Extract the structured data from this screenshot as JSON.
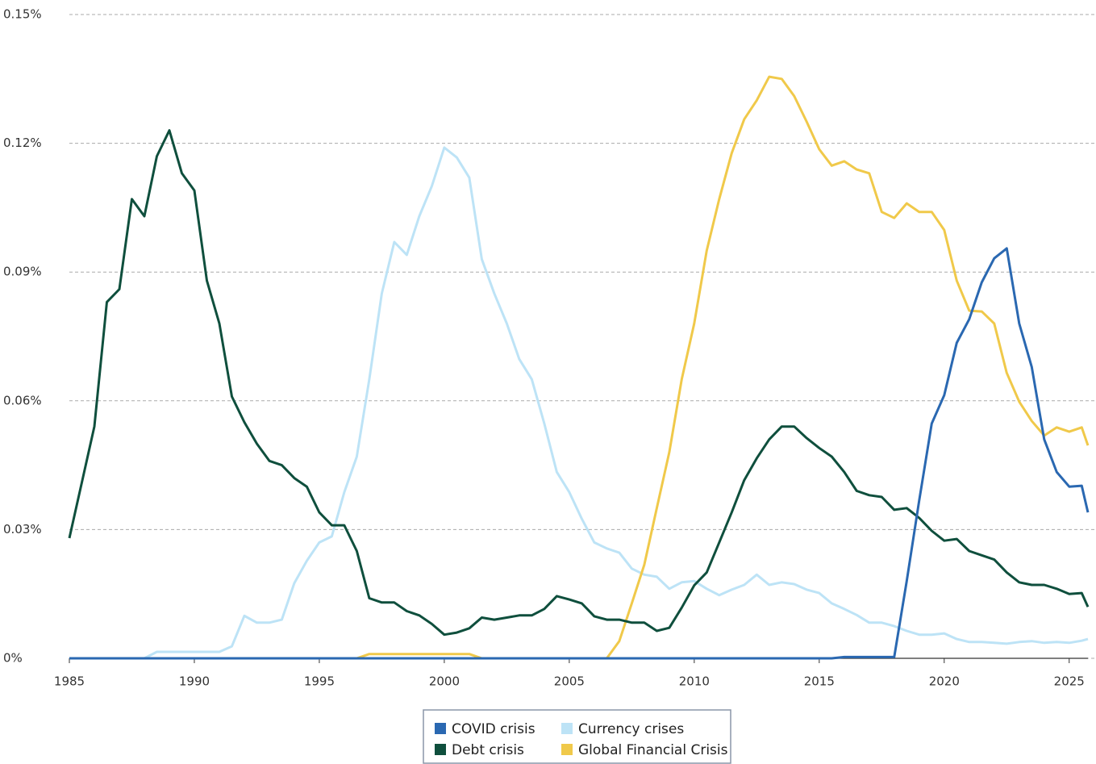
{
  "chart_data": {
    "type": "line",
    "x": [
      1985,
      1985.5,
      1986,
      1986.5,
      1987,
      1987.5,
      1988,
      1988.5,
      1989,
      1989.5,
      1990,
      1990.5,
      1991,
      1991.5,
      1992,
      1992.5,
      1993,
      1993.5,
      1994,
      1994.5,
      1995,
      1995.5,
      1996,
      1996.5,
      1997,
      1997.5,
      1998,
      1998.5,
      1999,
      1999.5,
      2000,
      2000.5,
      2001,
      2001.5,
      2002,
      2002.5,
      2003,
      2003.5,
      2004,
      2004.5,
      2005,
      2005.5,
      2006,
      2006.5,
      2007,
      2007.5,
      2008,
      2008.5,
      2009,
      2009.5,
      2010,
      2010.5,
      2011,
      2011.5,
      2012,
      2012.5,
      2013,
      2013.5,
      2014,
      2014.5,
      2015,
      2015.5,
      2016,
      2016.5,
      2017,
      2017.5,
      2018,
      2018.5,
      2019,
      2019.5,
      2020,
      2020.5,
      2021,
      2021.5,
      2022,
      2022.5,
      2023,
      2023.5,
      2024,
      2024.5,
      2025,
      2025.5,
      2025.75
    ],
    "series": [
      {
        "name": "COVID crisis",
        "color": "#2a68b1",
        "values": [
          0,
          0,
          0,
          0,
          0,
          0,
          0,
          0,
          0,
          0,
          0,
          0,
          0,
          0,
          0,
          0,
          0,
          0,
          0,
          0,
          0,
          0,
          0,
          0,
          0,
          0,
          0,
          0,
          0,
          0,
          0,
          0,
          0,
          0,
          0,
          0,
          0,
          0,
          0,
          0,
          0,
          0,
          0,
          0,
          0,
          0,
          0,
          0,
          0,
          0,
          0,
          0,
          0,
          0,
          0,
          0,
          0,
          0,
          0,
          0,
          0,
          0,
          0.0003,
          0.0003,
          0.0003,
          0.0003,
          0.0003,
          0.018,
          0.0368,
          0.0547,
          0.0613,
          0.0735,
          0.079,
          0.0876,
          0.0932,
          0.0955,
          0.078,
          0.0679,
          0.051,
          0.0434,
          0.04,
          0.0402,
          0.034
        ]
      },
      {
        "name": "Currency crises",
        "color": "#bde3f6",
        "values": [
          0,
          0,
          0,
          0,
          0,
          0,
          0,
          0.0015,
          0.0015,
          0.0015,
          0.0015,
          0.0015,
          0.0015,
          0.0028,
          0.0099,
          0.0083,
          0.0083,
          0.009,
          0.0175,
          0.0227,
          0.027,
          0.0284,
          0.0387,
          0.047,
          0.065,
          0.085,
          0.097,
          0.094,
          0.103,
          0.11,
          0.119,
          0.1167,
          0.112,
          0.093,
          0.085,
          0.078,
          0.0697,
          0.065,
          0.0547,
          0.0434,
          0.0387,
          0.0325,
          0.027,
          0.0256,
          0.0246,
          0.0209,
          0.0195,
          0.019,
          0.0162,
          0.0177,
          0.018,
          0.0162,
          0.0147,
          0.016,
          0.0171,
          0.0195,
          0.0171,
          0.0177,
          0.0173,
          0.016,
          0.0152,
          0.0128,
          0.0115,
          0.0101,
          0.0083,
          0.0083,
          0.0075,
          0.0064,
          0.0055,
          0.0055,
          0.0058,
          0.0045,
          0.0038,
          0.0038,
          0.0036,
          0.0034,
          0.0038,
          0.004,
          0.0036,
          0.0038,
          0.0036,
          0.0041,
          0.0045
        ]
      },
      {
        "name": "Debt crisis",
        "color": "#0f4f3d",
        "values": [
          0.028,
          0.041,
          0.054,
          0.083,
          0.086,
          0.107,
          0.103,
          0.117,
          0.123,
          0.113,
          0.109,
          0.088,
          0.078,
          0.061,
          0.055,
          0.05,
          0.046,
          0.045,
          0.042,
          0.04,
          0.034,
          0.031,
          0.031,
          0.025,
          0.014,
          0.013,
          0.013,
          0.011,
          0.01,
          0.008,
          0.0055,
          0.006,
          0.007,
          0.0095,
          0.009,
          0.0095,
          0.01,
          0.01,
          0.0115,
          0.0145,
          0.0137,
          0.0128,
          0.0098,
          0.009,
          0.009,
          0.0083,
          0.0083,
          0.0064,
          0.0071,
          0.0118,
          0.017,
          0.02,
          0.027,
          0.034,
          0.0415,
          0.0466,
          0.051,
          0.054,
          0.054,
          0.0513,
          0.049,
          0.047,
          0.0434,
          0.039,
          0.038,
          0.0376,
          0.0346,
          0.035,
          0.0327,
          0.0297,
          0.0274,
          0.0278,
          0.025,
          0.024,
          0.023,
          0.02,
          0.0177,
          0.0171,
          0.0171,
          0.0162,
          0.015,
          0.0152,
          0.012
        ]
      },
      {
        "name": "Global Financial Crisis",
        "color": "#f0c94a",
        "values": [
          0,
          0,
          0,
          0,
          0,
          0,
          0,
          0,
          0,
          0,
          0,
          0,
          0,
          0,
          0,
          0,
          0,
          0,
          0,
          0,
          0,
          0,
          0,
          0,
          0.001,
          0.001,
          0.001,
          0.001,
          0.001,
          0.001,
          0.001,
          0.001,
          0.001,
          0,
          0,
          0,
          0,
          0,
          0,
          0,
          0,
          0,
          0,
          0,
          0.004,
          0.0128,
          0.0218,
          0.035,
          0.048,
          0.065,
          0.078,
          0.095,
          0.107,
          0.1177,
          0.1256,
          0.13,
          0.1355,
          0.135,
          0.131,
          0.125,
          0.1186,
          0.1148,
          0.1158,
          0.1139,
          0.113,
          0.104,
          0.1026,
          0.106,
          0.104,
          0.104,
          0.0998,
          0.088,
          0.081,
          0.0808,
          0.078,
          0.0665,
          0.0598,
          0.0553,
          0.0519,
          0.0538,
          0.0528,
          0.0538,
          0.0496
        ]
      }
    ],
    "xlim": [
      1985,
      2025.75
    ],
    "xticks": [
      1985,
      1990,
      1995,
      2000,
      2005,
      2010,
      2015,
      2020,
      2025
    ],
    "ylim": [
      0,
      0.15
    ],
    "yticks": [
      {
        "value": 0,
        "label": "0%"
      },
      {
        "value": 0.03,
        "label": "0.03%"
      },
      {
        "value": 0.06,
        "label": "0.06%"
      },
      {
        "value": 0.09,
        "label": "0.09%"
      },
      {
        "value": 0.12,
        "label": "0.12%"
      },
      {
        "value": 0.15,
        "label": "0.15%"
      }
    ],
    "grid": true,
    "legend": "bottom"
  }
}
